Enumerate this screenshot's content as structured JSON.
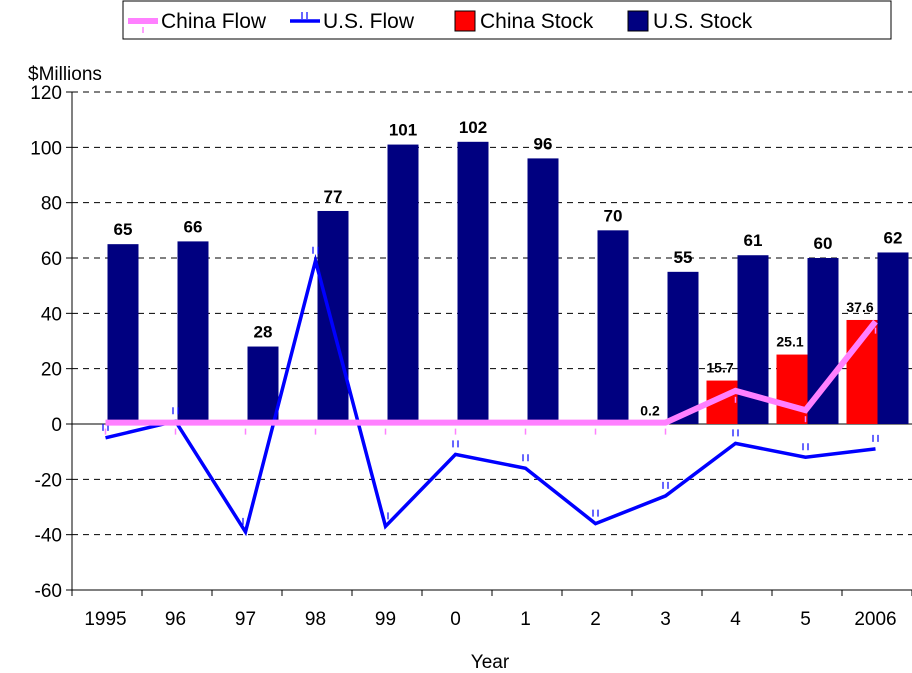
{
  "chart_data": {
    "type": "bar",
    "title": "",
    "ylabel": "$Millions",
    "xlabel": "Year",
    "ylim": [
      -60,
      120
    ],
    "yticks": [
      -60,
      -40,
      -20,
      0,
      20,
      40,
      60,
      80,
      100,
      120
    ],
    "grid": true,
    "legend_position": "top",
    "categories": [
      "1995",
      "96",
      "97",
      "98",
      "99",
      "0",
      "1",
      "2",
      "3",
      "4",
      "5",
      "2006"
    ],
    "series": [
      {
        "name": "China Flow",
        "type": "line",
        "color": "#ff80ff",
        "values": [
          0.5,
          0.5,
          0.5,
          0.5,
          0.5,
          0.5,
          0.5,
          0.5,
          0.5,
          12,
          5,
          37
        ]
      },
      {
        "name": "U.S. Flow",
        "type": "line",
        "color": "#0000ff",
        "values": [
          -5,
          1,
          -39,
          59,
          -37,
          -11,
          -16,
          -36,
          -26,
          -7,
          -12,
          -9
        ]
      },
      {
        "name": "China Stock",
        "type": "bar",
        "color": "#ff0000",
        "values": [
          null,
          null,
          null,
          null,
          null,
          null,
          null,
          null,
          0.2,
          15.7,
          25.1,
          37.6
        ],
        "data_labels": [
          "",
          "",
          "",
          "",
          "",
          "",
          "",
          "",
          "0.2",
          "15.7",
          "25.1",
          "37.6"
        ]
      },
      {
        "name": "U.S. Stock",
        "type": "bar",
        "color": "#000080",
        "values": [
          65,
          66,
          28,
          77,
          101,
          102,
          96,
          70,
          55,
          61,
          60,
          62
        ],
        "data_labels": [
          "65",
          "66",
          "28",
          "77",
          "101",
          "102",
          "96",
          "70",
          "55",
          "61",
          "60",
          "62"
        ]
      }
    ]
  }
}
